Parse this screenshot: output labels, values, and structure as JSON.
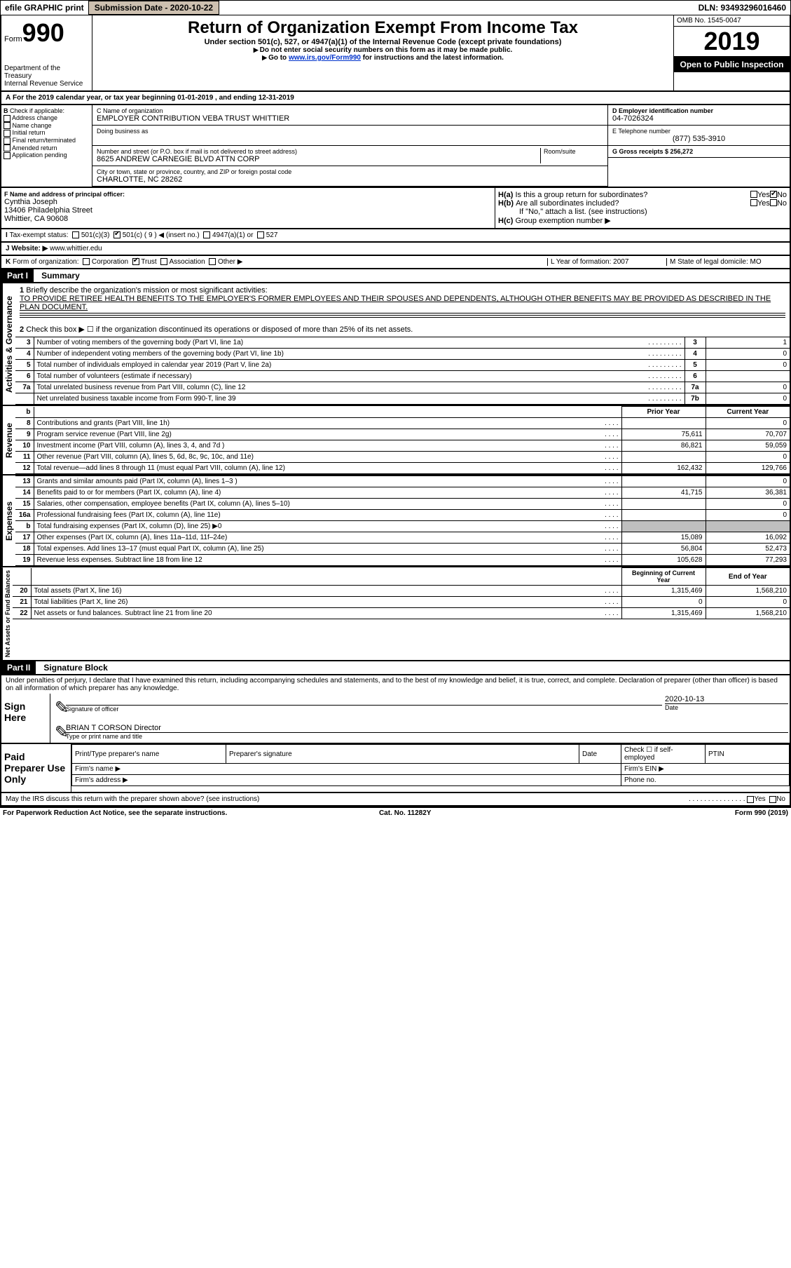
{
  "topbar": {
    "efile": "efile GRAPHIC print",
    "subdate_lbl": "Submission Date - 2020-10-22",
    "dln": "DLN: 93493296016460"
  },
  "header": {
    "form_word": "Form",
    "form_num": "990",
    "dept": "Department of the Treasury",
    "irs": "Internal Revenue Service",
    "title": "Return of Organization Exempt From Income Tax",
    "sub": "Under section 501(c), 527, or 4947(a)(1) of the Internal Revenue Code (except private foundations)",
    "note1": "Do not enter social security numbers on this form as it may be made public.",
    "note2_a": "Go to ",
    "note2_link": "www.irs.gov/Form990",
    "note2_b": " for instructions and the latest information.",
    "omb": "OMB No. 1545-0047",
    "year": "2019",
    "open": "Open to Public Inspection"
  },
  "a_line": "For the 2019 calendar year, or tax year beginning 01-01-2019   , and ending 12-31-2019",
  "b": {
    "lbl": "Check if applicable:",
    "opts": [
      "Address change",
      "Name change",
      "Initial return",
      "Final return/terminated",
      "Amended return",
      "Application pending"
    ]
  },
  "c": {
    "lbl_name": "C Name of organization",
    "name": "EMPLOYER CONTRIBUTION VEBA TRUST WHITTIER",
    "dba_lbl": "Doing business as",
    "addr_lbl": "Number and street (or P.O. box if mail is not delivered to street address)",
    "room_lbl": "Room/suite",
    "addr": "8625 ANDREW CARNEGIE BLVD ATTN CORP",
    "city_lbl": "City or town, state or province, country, and ZIP or foreign postal code",
    "city": "CHARLOTTE, NC  28262"
  },
  "d": {
    "lbl": "D Employer identification number",
    "val": "04-7026324"
  },
  "e": {
    "lbl": "E Telephone number",
    "val": "(877) 535-3910"
  },
  "g": {
    "lbl": "G Gross receipts $ 256,272"
  },
  "f": {
    "lbl": "F  Name and address of principal officer:",
    "name": "Cynthia Joseph",
    "addr1": "13406 Philadelphia Street",
    "addr2": "Whittier, CA  90608"
  },
  "h": {
    "a": "Is this a group return for subordinates?",
    "b": "Are all subordinates included?",
    "note": "If \"No,\" attach a list. (see instructions)",
    "c": "Group exemption number ▶"
  },
  "i": {
    "lbl": "Tax-exempt status:",
    "opts": [
      "501(c)(3)",
      "501(c) ( 9 ) ◀ (insert no.)",
      "4947(a)(1) or",
      "527"
    ]
  },
  "j": {
    "lbl": "Website: ▶",
    "val": "www.whittier.edu"
  },
  "k": {
    "lbl": "Form of organization:",
    "opts": [
      "Corporation",
      "Trust",
      "Association",
      "Other ▶"
    ]
  },
  "l": {
    "lbl": "L Year of formation: 2007"
  },
  "m": {
    "lbl": "M State of legal domicile: MO"
  },
  "part1": {
    "label": "Part I",
    "title": "Summary"
  },
  "summary": {
    "l1_lbl": "Briefly describe the organization's mission or most significant activities:",
    "l1_text": "TO PROVIDE RETIREE HEALTH BENEFITS TO THE EMPLOYER'S FORMER EMPLOYEES AND THEIR SPOUSES AND DEPENDENTS, ALTHOUGH OTHER BENEFITS MAY BE PROVIDED AS DESCRIBED IN THE PLAN DOCUMENT.",
    "l2": "Check this box ▶ ☐  if the organization discontinued its operations or disposed of more than 25% of its net assets.",
    "lines_gov": [
      {
        "n": "3",
        "t": "Number of voting members of the governing body (Part VI, line 1a)",
        "box": "3",
        "v": "1"
      },
      {
        "n": "4",
        "t": "Number of independent voting members of the governing body (Part VI, line 1b)",
        "box": "4",
        "v": "0"
      },
      {
        "n": "5",
        "t": "Total number of individuals employed in calendar year 2019 (Part V, line 2a)",
        "box": "5",
        "v": "0"
      },
      {
        "n": "6",
        "t": "Total number of volunteers (estimate if necessary)",
        "box": "6",
        "v": ""
      },
      {
        "n": "7a",
        "t": "Total unrelated business revenue from Part VIII, column (C), line 12",
        "box": "7a",
        "v": "0"
      },
      {
        "n": "",
        "t": "Net unrelated business taxable income from Form 990-T, line 39",
        "box": "7b",
        "v": "0"
      }
    ],
    "hdr_prior": "Prior Year",
    "hdr_curr": "Current Year",
    "rev": [
      {
        "n": "8",
        "t": "Contributions and grants (Part VIII, line 1h)",
        "p": "",
        "c": "0"
      },
      {
        "n": "9",
        "t": "Program service revenue (Part VIII, line 2g)",
        "p": "75,611",
        "c": "70,707"
      },
      {
        "n": "10",
        "t": "Investment income (Part VIII, column (A), lines 3, 4, and 7d )",
        "p": "86,821",
        "c": "59,059"
      },
      {
        "n": "11",
        "t": "Other revenue (Part VIII, column (A), lines 5, 6d, 8c, 9c, 10c, and 11e)",
        "p": "",
        "c": "0"
      },
      {
        "n": "12",
        "t": "Total revenue—add lines 8 through 11 (must equal Part VIII, column (A), line 12)",
        "p": "162,432",
        "c": "129,766"
      }
    ],
    "exp": [
      {
        "n": "13",
        "t": "Grants and similar amounts paid (Part IX, column (A), lines 1–3 )",
        "p": "",
        "c": "0"
      },
      {
        "n": "14",
        "t": "Benefits paid to or for members (Part IX, column (A), line 4)",
        "p": "41,715",
        "c": "36,381"
      },
      {
        "n": "15",
        "t": "Salaries, other compensation, employee benefits (Part IX, column (A), lines 5–10)",
        "p": "",
        "c": "0"
      },
      {
        "n": "16a",
        "t": "Professional fundraising fees (Part IX, column (A), line 11e)",
        "p": "",
        "c": "0"
      },
      {
        "n": "b",
        "t": "Total fundraising expenses (Part IX, column (D), line 25) ▶0",
        "p": "shade",
        "c": "shade"
      },
      {
        "n": "17",
        "t": "Other expenses (Part IX, column (A), lines 11a–11d, 11f–24e)",
        "p": "15,089",
        "c": "16,092"
      },
      {
        "n": "18",
        "t": "Total expenses. Add lines 13–17 (must equal Part IX, column (A), line 25)",
        "p": "56,804",
        "c": "52,473"
      },
      {
        "n": "19",
        "t": "Revenue less expenses. Subtract line 18 from line 12",
        "p": "105,628",
        "c": "77,293"
      }
    ],
    "hdr_boy": "Beginning of Current Year",
    "hdr_eoy": "End of Year",
    "net": [
      {
        "n": "20",
        "t": "Total assets (Part X, line 16)",
        "p": "1,315,469",
        "c": "1,568,210"
      },
      {
        "n": "21",
        "t": "Total liabilities (Part X, line 26)",
        "p": "0",
        "c": "0"
      },
      {
        "n": "22",
        "t": "Net assets or fund balances. Subtract line 21 from line 20",
        "p": "1,315,469",
        "c": "1,568,210"
      }
    ],
    "vlabels": {
      "gov": "Activities & Governance",
      "rev": "Revenue",
      "exp": "Expenses",
      "net": "Net Assets or Fund Balances"
    }
  },
  "part2": {
    "label": "Part II",
    "title": "Signature Block"
  },
  "sig": {
    "penalty": "Under penalties of perjury, I declare that I have examined this return, including accompanying schedules and statements, and to the best of my knowledge and belief, it is true, correct, and complete. Declaration of preparer (other than officer) is based on all information of which preparer has any knowledge.",
    "here": "Sign Here",
    "sig_officer": "Signature of officer",
    "date_lbl": "Date",
    "date": "2020-10-13",
    "name": "BRIAN T CORSON  Director",
    "name_lbl": "Type or print name and title",
    "paid": "Paid Preparer Use Only",
    "prep_name": "Print/Type preparer's name",
    "prep_sig": "Preparer's signature",
    "prep_date": "Date",
    "prep_chk": "Check ☐ if self-employed",
    "ptin": "PTIN",
    "firm_name": "Firm's name    ▶",
    "firm_ein": "Firm's EIN ▶",
    "firm_addr": "Firm's address ▶",
    "phone": "Phone no.",
    "discuss": "May the IRS discuss this return with the preparer shown above? (see instructions)"
  },
  "footer": {
    "l": "For Paperwork Reduction Act Notice, see the separate instructions.",
    "c": "Cat. No. 11282Y",
    "r": "Form 990 (2019)"
  }
}
